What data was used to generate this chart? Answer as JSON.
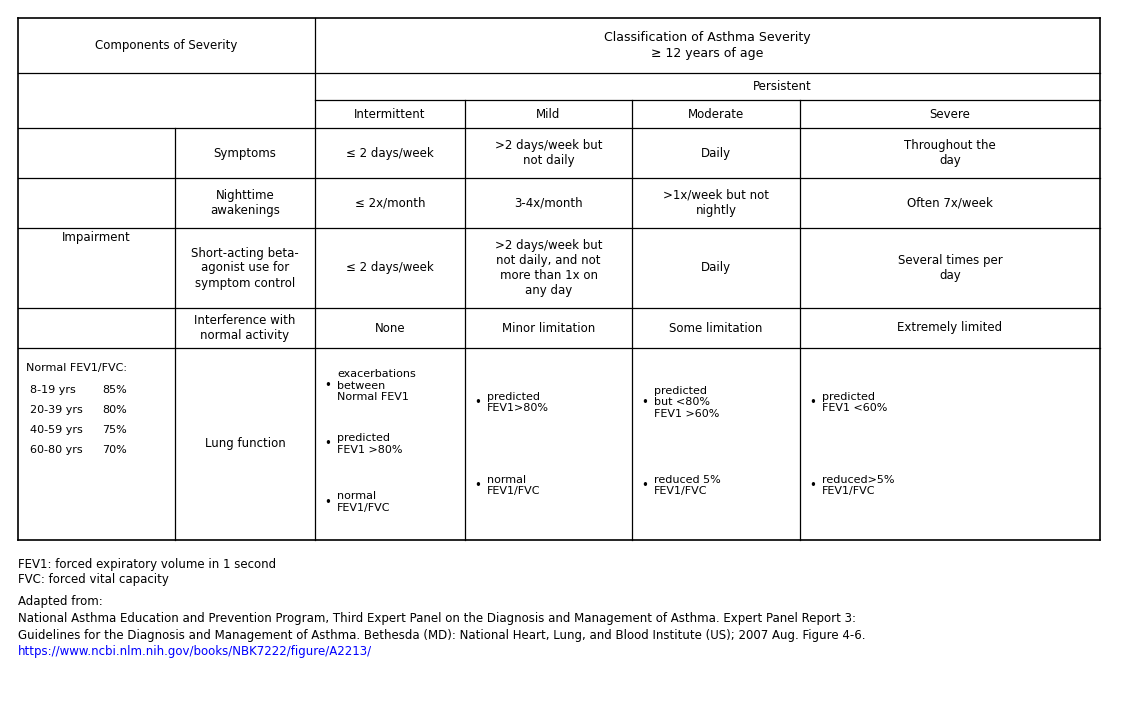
{
  "title": "Classification of Asthma Severity\n≥ 12 years of age",
  "subtitle_persistent": "Persistent",
  "col_headers": [
    "Intermittent",
    "Mild",
    "Moderate",
    "Severe"
  ],
  "components_label": "Components of Severity",
  "impairment_label": "Impairment",
  "normal_fev_label": "Normal FEV1/FVC:",
  "normal_fev_data": [
    [
      "8-19 yrs",
      "85%"
    ],
    [
      "20-39 yrs",
      "80%"
    ],
    [
      "40-59 yrs",
      "75%"
    ],
    [
      "60-80 yrs",
      "70%"
    ]
  ],
  "row_labels": [
    "Symptoms",
    "Nighttime\nawakenings",
    "Short-acting beta-\nagonist use for\nsymptom control",
    "Interference with\nnormal activity",
    "Lung function"
  ],
  "cell_data": [
    [
      "≤ 2 days/week",
      ">2 days/week but\nnot daily",
      "Daily",
      "Throughout the\nday"
    ],
    [
      "≤ 2x/month",
      "3-4x/month",
      ">1x/week but not\nnightly",
      "Often 7x/week"
    ],
    [
      "≤ 2 days/week",
      ">2 days/week but\nnot daily, and not\nmore than 1x on\nany day",
      "Daily",
      "Several times per\nday"
    ],
    [
      "None",
      "Minor limitation",
      "Some limitation",
      "Extremely limited"
    ]
  ],
  "lung_data": [
    [
      [
        "Normal FEV1\nbetween\nexacerbations",
        "FEV1 >80%\npredicted",
        "FEV1/FVC\nnormal"
      ]
    ],
    [
      [
        "FEV1>80%\npredicted",
        "FEV1/FVC\nnormal"
      ]
    ],
    [
      [
        "FEV1 >60%\nbut <80%\npredicted",
        "FEV1/FVC\nreduced 5%"
      ]
    ],
    [
      [
        "FEV1 <60%\npredicted",
        "FEV1/FVC\nreduced>5%"
      ]
    ]
  ],
  "footnote1": "FEV1: forced expiratory volume in 1 second",
  "footnote2": "FVC: forced vital capacity",
  "footnote3": "Adapted from:",
  "footnote4": "National Asthma Education and Prevention Program, Third Expert Panel on the Diagnosis and Management of Asthma. Expert Panel Report 3:",
  "footnote5": "Guidelines for the Diagnosis and Management of Asthma. Bethesda (MD): National Heart, Lung, and Blood Institute (US); 2007 Aug. Figure 4-6.",
  "footnote_url": "https://www.ncbi.nlm.nih.gov/books/NBK7222/figure/A2213/",
  "bg_color": "#ffffff",
  "line_color": "#000000",
  "font_size": 8.5
}
